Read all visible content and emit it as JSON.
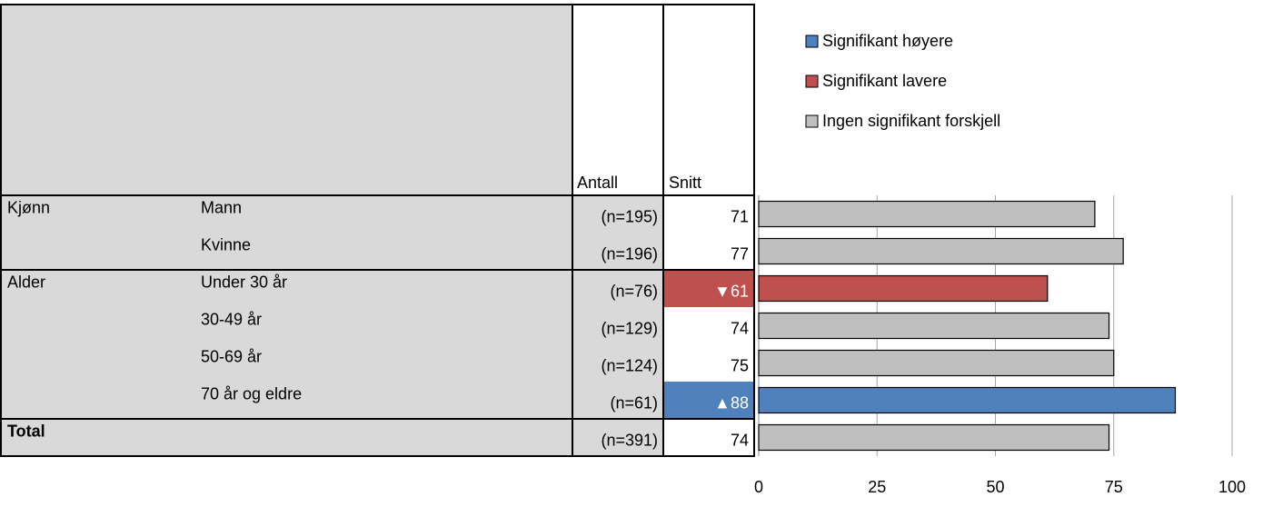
{
  "chart_data": {
    "type": "bar",
    "orientation": "horizontal",
    "columns": [
      "Antall",
      "Snitt"
    ],
    "groups": [
      "Kjønn",
      null,
      "Alder",
      null,
      null,
      null,
      "Total"
    ],
    "categories": [
      "Mann",
      "Kvinne",
      "Under 30 år",
      "30-49 år",
      "50-69 år",
      "70 år og eldre",
      null
    ],
    "counts": [
      "(n=195)",
      "(n=196)",
      "(n=76)",
      "(n=129)",
      "(n=124)",
      "(n=61)",
      "(n=391)"
    ],
    "values": [
      71,
      77,
      61,
      74,
      75,
      88,
      74
    ],
    "value_labels": [
      "71",
      "77",
      "▼61",
      "74",
      "75",
      "▲88",
      "74"
    ],
    "colors": [
      "#bfbfbf",
      "#bfbfbf",
      "#c0504d",
      "#bfbfbf",
      "#bfbfbf",
      "#4f81bd",
      "#bfbfbf"
    ],
    "legend": [
      {
        "name": "Signifikant høyere",
        "color": "#4f81bd"
      },
      {
        "name": "Signifikant lavere",
        "color": "#c0504d"
      },
      {
        "name": "Ingen signifikant forskjell",
        "color": "#bfbfbf"
      }
    ],
    "xlim": [
      0,
      100
    ],
    "xticks": [
      0,
      25,
      50,
      75,
      100
    ],
    "grid": true
  }
}
